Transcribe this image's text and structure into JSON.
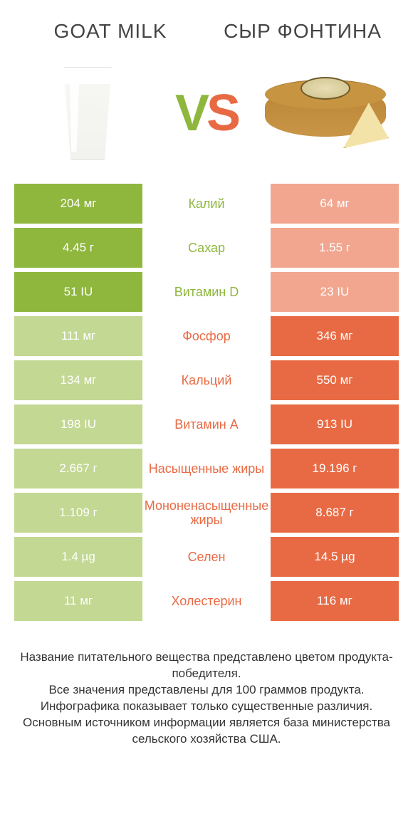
{
  "colors": {
    "left": "#8fb73e",
    "right": "#e86a44",
    "dim_left": "#c2d893",
    "dim_right": "#f2a690",
    "mid_bg": "#ffffff"
  },
  "header": {
    "left_title": "GOAT MILK",
    "right_title": "СЫР ФОНТИНА"
  },
  "vs": {
    "v": "V",
    "s": "S"
  },
  "rows": [
    {
      "label": "Калий",
      "left": "204 мг",
      "right": "64 мг",
      "winner": "left"
    },
    {
      "label": "Сахар",
      "left": "4.45 г",
      "right": "1.55 г",
      "winner": "left"
    },
    {
      "label": "Витамин D",
      "left": "51 IU",
      "right": "23 IU",
      "winner": "left"
    },
    {
      "label": "Фосфор",
      "left": "111 мг",
      "right": "346 мг",
      "winner": "right"
    },
    {
      "label": "Кальций",
      "left": "134 мг",
      "right": "550 мг",
      "winner": "right"
    },
    {
      "label": "Витамин A",
      "left": "198 IU",
      "right": "913 IU",
      "winner": "right"
    },
    {
      "label": "Насыщенные жиры",
      "left": "2.667 г",
      "right": "19.196 г",
      "winner": "right"
    },
    {
      "label": "Мононенасыщенные жиры",
      "left": "1.109 г",
      "right": "8.687 г",
      "winner": "right"
    },
    {
      "label": "Селен",
      "left": "1.4 µg",
      "right": "14.5 µg",
      "winner": "right"
    },
    {
      "label": "Холестерин",
      "left": "11 мг",
      "right": "116 мг",
      "winner": "right"
    }
  ],
  "footer_lines": [
    "Название питательного вещества представлено цветом продукта-победителя.",
    "Все значения представлены для 100 граммов продукта.",
    "Инфографика показывает только существенные различия.",
    "Основным источником информации является база министерства сельского хозяйства США."
  ]
}
